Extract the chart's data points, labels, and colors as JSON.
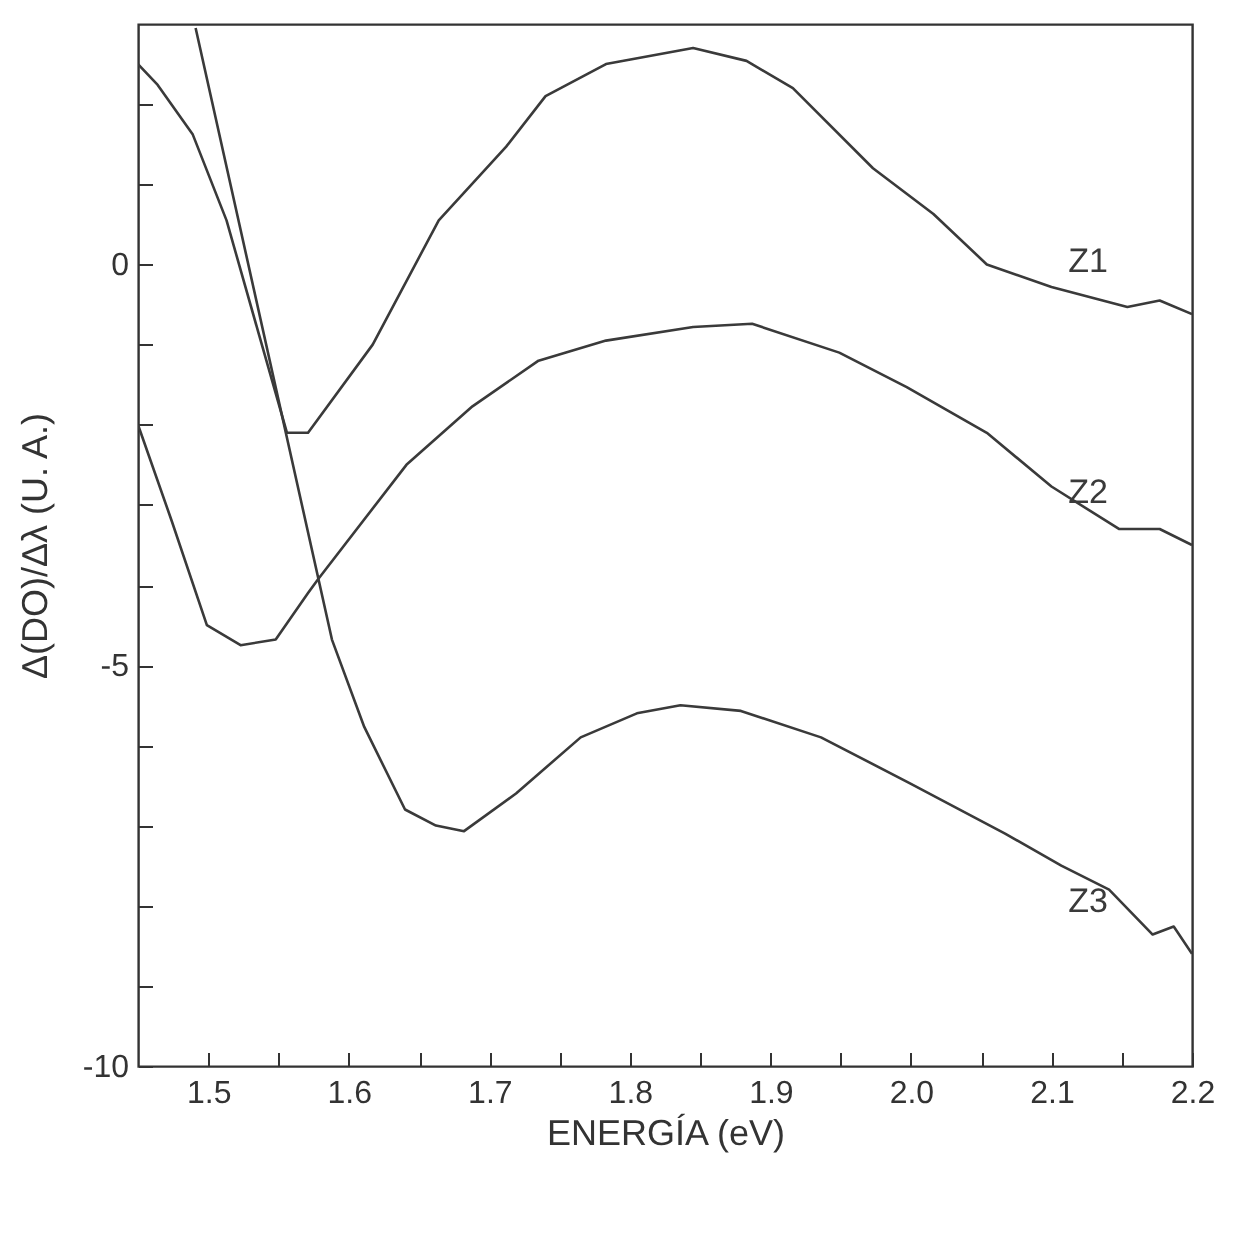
{
  "chart_data": {
    "type": "line",
    "xlabel": "ENERGÍA (eV)",
    "ylabel": "Δ(DO)/Δλ (U. A.)",
    "xlim": [
      1.45,
      2.2
    ],
    "ylim": [
      -10,
      3
    ],
    "xticks": [
      1.5,
      {
        "value": 1.55,
        "label": null
      },
      1.6,
      {
        "value": 1.65,
        "label": null
      },
      1.7,
      {
        "value": 1.75,
        "label": null
      },
      1.8,
      {
        "value": 1.85,
        "label": null
      },
      1.9,
      {
        "value": 1.95,
        "label": null
      },
      {
        "value": 2,
        "label": "2.0"
      },
      {
        "value": 2.05,
        "label": null
      },
      2.1,
      {
        "value": 2.15,
        "label": null
      },
      2.2
    ],
    "yticks": [
      {
        "value": 2,
        "label": null
      },
      {
        "value": 1,
        "label": null
      },
      0,
      {
        "value": -1,
        "label": null
      },
      {
        "value": -2,
        "label": null
      },
      {
        "value": -3,
        "label": null
      },
      {
        "value": -4,
        "label": null
      },
      -5,
      {
        "value": -6,
        "label": null
      },
      {
        "value": -7,
        "label": null
      },
      {
        "value": -8,
        "label": null
      },
      {
        "value": -9,
        "label": null
      },
      -10
    ],
    "grid": false,
    "legend": false,
    "marker": "none",
    "line_style": "solid",
    "series": [
      {
        "name": "Z1",
        "color": "#3a3a3a",
        "x": [
          1.45,
          1.464,
          1.489,
          1.513,
          1.536,
          1.556,
          1.571,
          1.617,
          1.664,
          1.712,
          1.74,
          1.783,
          1.845,
          1.883,
          1.916,
          1.973,
          2.016,
          2.054,
          2.1,
          2.154,
          2.177,
          2.2
        ],
        "values": [
          2.5,
          2.24,
          1.62,
          0.55,
          -0.87,
          -2.1,
          -2.1,
          -1.0,
          0.55,
          1.47,
          2.1,
          2.5,
          2.7,
          2.54,
          2.2,
          1.2,
          0.63,
          0.0,
          -0.28,
          -0.53,
          -0.45,
          -0.62
        ]
      },
      {
        "name": "Z2",
        "color": "#3a3a3a",
        "x": [
          1.45,
          1.474,
          1.499,
          1.523,
          1.548,
          1.571,
          1.578,
          1.641,
          1.688,
          1.735,
          1.783,
          1.845,
          1.887,
          1.949,
          1.997,
          2.054,
          2.1,
          2.148,
          2.177,
          2.2
        ],
        "values": [
          -2.0,
          -3.2,
          -4.5,
          -4.75,
          -4.68,
          -4.1,
          -3.93,
          -2.5,
          -1.77,
          -1.2,
          -0.95,
          -0.78,
          -0.74,
          -1.1,
          -1.53,
          -2.1,
          -2.77,
          -3.3,
          -3.3,
          -3.5
        ]
      },
      {
        "name": "Z3",
        "color": "#3a3a3a",
        "x": [
          1.491,
          1.588,
          1.611,
          1.64,
          1.662,
          1.682,
          1.719,
          1.765,
          1.805,
          1.836,
          1.879,
          1.936,
          1.999,
          2.067,
          2.107,
          2.141,
          2.172,
          2.187,
          2.2
        ],
        "values": [
          2.95,
          -4.68,
          -5.77,
          -6.8,
          -7.0,
          -7.07,
          -6.6,
          -5.9,
          -5.6,
          -5.5,
          -5.57,
          -5.9,
          -6.47,
          -7.1,
          -7.5,
          -7.8,
          -8.36,
          -8.26,
          -8.6
        ]
      }
    ]
  }
}
